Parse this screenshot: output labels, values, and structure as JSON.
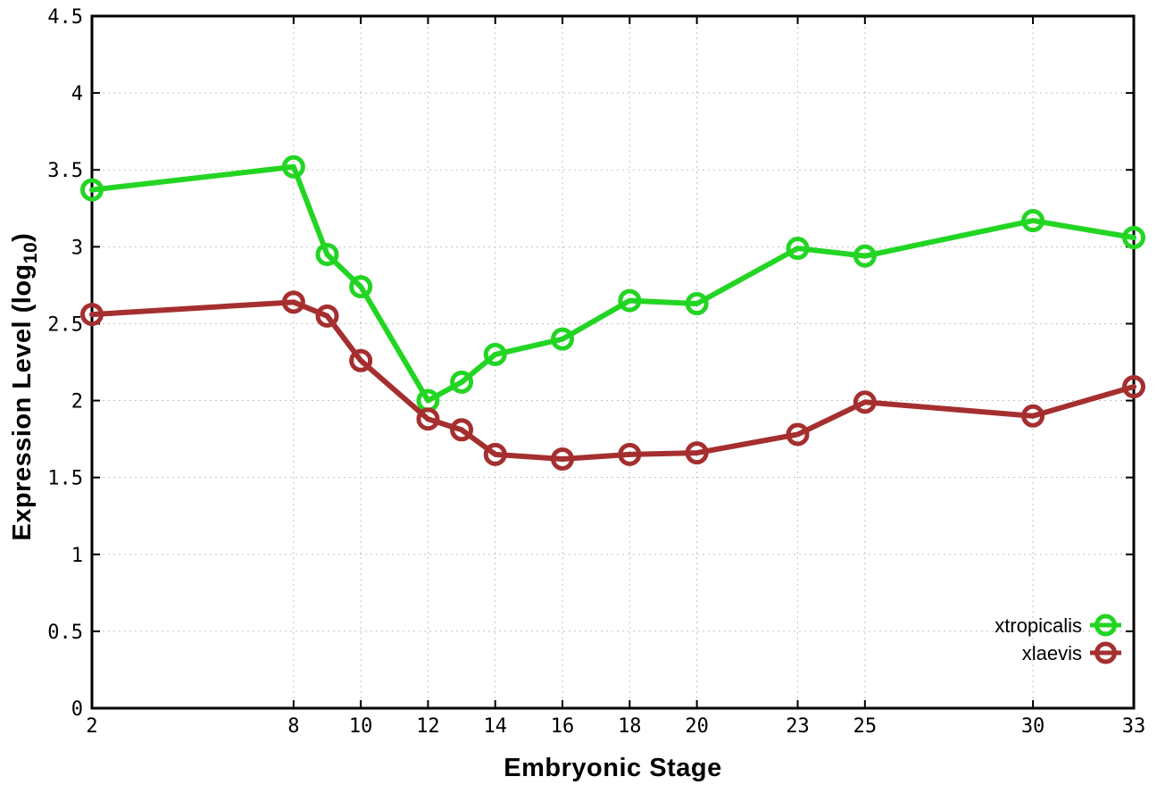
{
  "chart_data": {
    "type": "line",
    "title": "",
    "xlabel": "Embryonic Stage",
    "ylabel_main": "Expression Level (log",
    "ylabel_sub": "10",
    "ylabel_close": ")",
    "x": [
      2,
      8,
      9,
      10,
      12,
      13,
      14,
      16,
      18,
      20,
      23,
      25,
      30,
      33
    ],
    "series": [
      {
        "name": "xtropicalis",
        "color": "#23d523",
        "values": [
          3.37,
          3.52,
          2.95,
          2.74,
          2.0,
          2.12,
          2.3,
          2.4,
          2.65,
          2.63,
          2.99,
          2.94,
          3.17,
          3.06
        ]
      },
      {
        "name": "xlaevis",
        "color": "#a52f2f",
        "values": [
          2.56,
          2.64,
          2.55,
          2.26,
          1.88,
          1.81,
          1.65,
          1.62,
          1.65,
          1.66,
          1.78,
          1.99,
          1.9,
          2.09
        ]
      }
    ],
    "xticks": [
      2,
      8,
      10,
      12,
      14,
      16,
      18,
      20,
      23,
      25,
      30,
      33
    ],
    "yticks": [
      0,
      0.5,
      1,
      1.5,
      2,
      2.5,
      3,
      3.5,
      4,
      4.5
    ],
    "ytick_labels": [
      "0",
      "0.5",
      "1",
      "1.5",
      "2",
      "2.5",
      "3",
      "3.5",
      "4",
      "4.5"
    ],
    "xlim": [
      2,
      33
    ],
    "ylim": [
      0,
      4.5
    ],
    "grid": true,
    "legend_position": "bottom-right",
    "marker": "open-circle",
    "grid_color": "#c2c2c2",
    "border_color": "#000000",
    "background_color": "#ffffff"
  }
}
